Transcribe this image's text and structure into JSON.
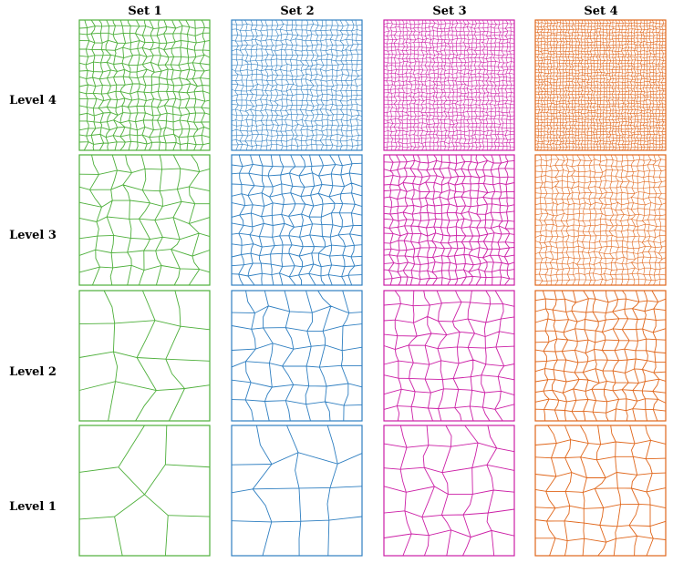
{
  "columns": [
    {
      "label": "Set 1",
      "color": "#4daf3a"
    },
    {
      "label": "Set 2",
      "color": "#2f7fc1"
    },
    {
      "label": "Set 3",
      "color": "#cc1fa6"
    },
    {
      "label": "Set 4",
      "color": "#e0661a"
    }
  ],
  "rows": [
    {
      "label": "Level 4"
    },
    {
      "label": "Level 3"
    },
    {
      "label": "Level 2"
    },
    {
      "label": "Level 1"
    }
  ]
}
